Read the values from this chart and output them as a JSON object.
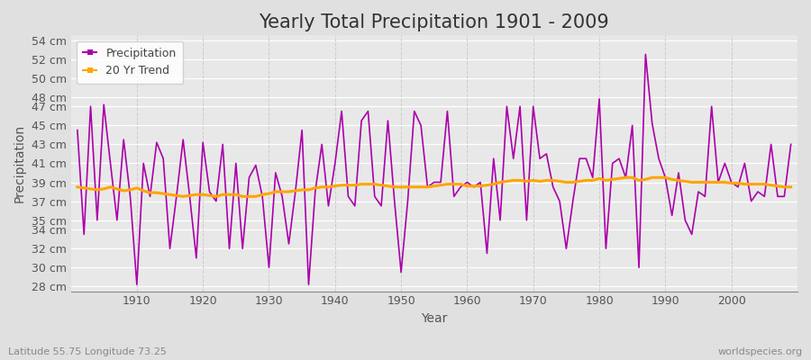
{
  "title": "Yearly Total Precipitation 1901 - 2009",
  "xlabel": "Year",
  "ylabel": "Precipitation",
  "subtitle": "Latitude 55.75 Longitude 73.25",
  "credit": "worldspecies.org",
  "years": [
    1901,
    1902,
    1903,
    1904,
    1905,
    1906,
    1907,
    1908,
    1909,
    1910,
    1911,
    1912,
    1913,
    1914,
    1915,
    1916,
    1917,
    1918,
    1919,
    1920,
    1921,
    1922,
    1923,
    1924,
    1925,
    1926,
    1927,
    1928,
    1929,
    1930,
    1931,
    1932,
    1933,
    1934,
    1935,
    1936,
    1937,
    1938,
    1939,
    1940,
    1941,
    1942,
    1943,
    1944,
    1945,
    1946,
    1947,
    1948,
    1949,
    1950,
    1951,
    1952,
    1953,
    1954,
    1955,
    1956,
    1957,
    1958,
    1959,
    1960,
    1961,
    1962,
    1963,
    1964,
    1965,
    1966,
    1967,
    1968,
    1969,
    1970,
    1971,
    1972,
    1973,
    1974,
    1975,
    1976,
    1977,
    1978,
    1979,
    1980,
    1981,
    1982,
    1983,
    1984,
    1985,
    1986,
    1987,
    1988,
    1989,
    1990,
    1991,
    1992,
    1993,
    1994,
    1995,
    1996,
    1997,
    1998,
    1999,
    2000,
    2001,
    2002,
    2003,
    2004,
    2005,
    2006,
    2007,
    2008,
    2009
  ],
  "precipitation": [
    44.5,
    33.5,
    47.0,
    35.0,
    47.2,
    41.0,
    35.0,
    43.5,
    37.5,
    28.2,
    41.0,
    37.5,
    43.2,
    41.5,
    32.0,
    37.5,
    43.5,
    37.5,
    31.0,
    43.2,
    38.0,
    37.0,
    43.0,
    32.0,
    41.0,
    32.0,
    39.5,
    40.8,
    37.5,
    30.0,
    40.0,
    37.5,
    32.5,
    38.0,
    44.5,
    28.2,
    38.0,
    43.0,
    36.5,
    41.0,
    46.5,
    37.5,
    36.5,
    45.5,
    46.5,
    37.5,
    36.5,
    45.5,
    37.0,
    29.5,
    37.0,
    46.5,
    45.0,
    38.5,
    39.0,
    39.0,
    46.5,
    37.5,
    38.5,
    39.0,
    38.5,
    39.0,
    31.5,
    41.5,
    35.0,
    47.0,
    41.5,
    47.0,
    35.0,
    47.0,
    41.5,
    42.0,
    38.5,
    37.0,
    32.0,
    37.0,
    41.5,
    41.5,
    39.5,
    47.8,
    32.0,
    41.0,
    41.5,
    39.5,
    45.0,
    30.0,
    52.5,
    45.2,
    41.5,
    39.5,
    35.5,
    40.0,
    35.0,
    33.5,
    38.0,
    37.5,
    47.0,
    39.0,
    41.0,
    39.0,
    38.5,
    41.0,
    37.0,
    38.0,
    37.5,
    43.0,
    37.5,
    37.5,
    43.0
  ],
  "trend": [
    38.5,
    38.4,
    38.3,
    38.2,
    38.3,
    38.5,
    38.3,
    38.1,
    38.2,
    38.4,
    38.1,
    37.9,
    37.9,
    37.8,
    37.7,
    37.6,
    37.5,
    37.6,
    37.7,
    37.7,
    37.6,
    37.5,
    37.7,
    37.7,
    37.7,
    37.5,
    37.5,
    37.5,
    37.7,
    37.8,
    38.0,
    38.0,
    38.0,
    38.1,
    38.2,
    38.2,
    38.4,
    38.5,
    38.5,
    38.6,
    38.7,
    38.7,
    38.7,
    38.8,
    38.8,
    38.8,
    38.7,
    38.6,
    38.5,
    38.5,
    38.5,
    38.5,
    38.5,
    38.5,
    38.6,
    38.7,
    38.8,
    38.8,
    38.8,
    38.6,
    38.6,
    38.6,
    38.7,
    38.8,
    39.0,
    39.1,
    39.2,
    39.2,
    39.1,
    39.2,
    39.1,
    39.2,
    39.2,
    39.1,
    39.0,
    39.0,
    39.1,
    39.2,
    39.2,
    39.4,
    39.2,
    39.3,
    39.4,
    39.5,
    39.5,
    39.2,
    39.3,
    39.5,
    39.5,
    39.5,
    39.3,
    39.2,
    39.1,
    39.0,
    39.0,
    39.0,
    39.0,
    39.0,
    39.0,
    38.9,
    38.9,
    38.8,
    38.8,
    38.8,
    38.8,
    38.7,
    38.6,
    38.5,
    38.5
  ],
  "precip_color": "#AA00AA",
  "trend_color": "#FFA500",
  "bg_color": "#e0e0e0",
  "plot_bg_color": "#e8e8e8",
  "grid_color_h": "#ffffff",
  "grid_color_v": "#cccccc",
  "ylim": [
    27.5,
    54.5
  ],
  "yticks": [
    28,
    30,
    32,
    34,
    35,
    37,
    39,
    41,
    43,
    45,
    47,
    48,
    50,
    52,
    54
  ],
  "xticks": [
    1910,
    1920,
    1930,
    1940,
    1950,
    1960,
    1970,
    1980,
    1990,
    2000
  ],
  "xlim": [
    1900,
    2010
  ],
  "title_fontsize": 15,
  "axis_label_fontsize": 10,
  "tick_fontsize": 9,
  "legend_fontsize": 9
}
